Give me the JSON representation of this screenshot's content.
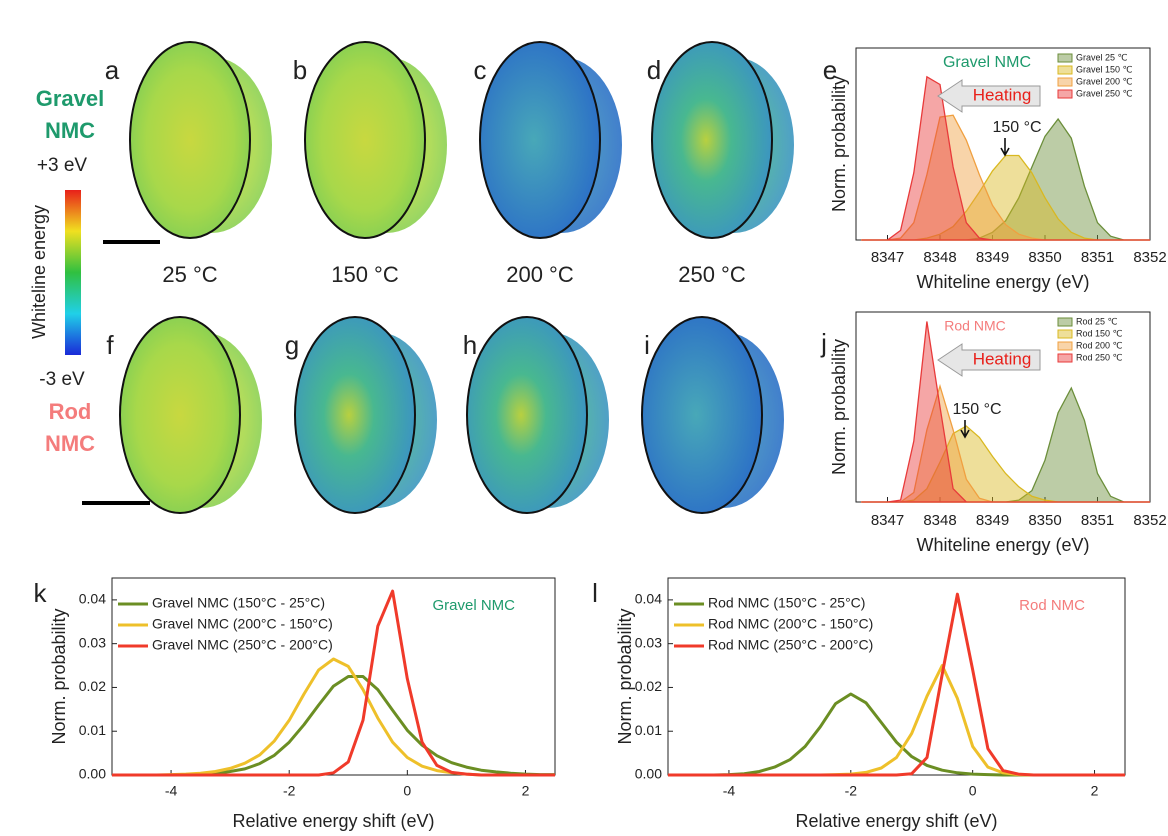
{
  "side_labels": {
    "gravel": [
      "Gravel",
      "NMC"
    ],
    "rod": [
      "Rod",
      "NMC"
    ]
  },
  "colorbar": {
    "max_label": "+3 eV",
    "min_label": "-3 eV",
    "title": "Whiteline energy"
  },
  "image_panels": {
    "labels": [
      "a",
      "b",
      "c",
      "d",
      "f",
      "g",
      "h",
      "i"
    ],
    "temperatures": [
      "25 °C",
      "150 °C",
      "200 °C",
      "250 °C"
    ]
  },
  "chart_data": [
    {
      "type": "area",
      "panel_label": "e",
      "annotation": "Gravel NMC",
      "arrow_label": "Heating",
      "peak_label": "150 °C",
      "x_label": "Whiteline energy (eV)",
      "y_label": "Norm. probability",
      "xlim": [
        8346.4,
        8352
      ],
      "xticks": [
        8347,
        8348,
        8349,
        8350,
        8351,
        8352
      ],
      "ylim": [
        0,
        1
      ],
      "legend": "upper right",
      "x": [
        8346.5,
        8346.75,
        8347,
        8347.25,
        8347.5,
        8347.75,
        8348,
        8348.25,
        8348.5,
        8348.75,
        8349,
        8349.25,
        8349.5,
        8349.75,
        8350,
        8350.25,
        8350.5,
        8350.75,
        8351,
        8351.25,
        8351.5,
        8351.75,
        8352
      ],
      "series": [
        {
          "name": "Gravel 25 ℃",
          "color": "#6b8e3a",
          "values": [
            0,
            0,
            0,
            0,
            0,
            0,
            0,
            0,
            0,
            0.01,
            0.04,
            0.1,
            0.22,
            0.38,
            0.54,
            0.63,
            0.53,
            0.28,
            0.09,
            0.02,
            0,
            0,
            0
          ]
        },
        {
          "name": "Gravel 150 ℃",
          "color": "#d9b820",
          "values": [
            0,
            0,
            0,
            0,
            0,
            0.01,
            0.03,
            0.07,
            0.15,
            0.25,
            0.36,
            0.44,
            0.44,
            0.35,
            0.22,
            0.11,
            0.04,
            0.01,
            0,
            0,
            0,
            0,
            0
          ]
        },
        {
          "name": "Gravel 200 ℃",
          "color": "#f0a040",
          "values": [
            0,
            0,
            0,
            0.01,
            0.09,
            0.34,
            0.64,
            0.65,
            0.52,
            0.34,
            0.18,
            0.08,
            0.03,
            0.01,
            0,
            0,
            0,
            0,
            0,
            0,
            0,
            0,
            0
          ]
        },
        {
          "name": "Gravel 250 ℃",
          "color": "#e83a3a",
          "values": [
            0,
            0,
            0,
            0.05,
            0.35,
            0.85,
            0.81,
            0.38,
            0.09,
            0.01,
            0,
            0,
            0,
            0,
            0,
            0,
            0,
            0,
            0,
            0,
            0,
            0,
            0
          ]
        }
      ]
    },
    {
      "type": "area",
      "panel_label": "j",
      "annotation": "Rod NMC",
      "arrow_label": "Heating",
      "peak_label": "150 °C",
      "x_label": "Whiteline energy (eV)",
      "y_label": "Norm. probability",
      "xlim": [
        8346.4,
        8352
      ],
      "xticks": [
        8347,
        8348,
        8349,
        8350,
        8351,
        8352
      ],
      "ylim": [
        0,
        1
      ],
      "legend": "upper right",
      "x": [
        8346.5,
        8346.75,
        8347,
        8347.25,
        8347.5,
        8347.75,
        8348,
        8348.25,
        8348.5,
        8348.75,
        8349,
        8349.25,
        8349.5,
        8349.75,
        8350,
        8350.25,
        8350.5,
        8350.75,
        8351,
        8351.25,
        8351.5,
        8351.75,
        8352
      ],
      "series": [
        {
          "name": "Rod 25 ℃",
          "color": "#6b8e3a",
          "values": [
            0,
            0,
            0,
            0,
            0,
            0,
            0,
            0,
            0,
            0,
            0,
            0,
            0.01,
            0.06,
            0.22,
            0.47,
            0.6,
            0.43,
            0.15,
            0.03,
            0,
            0,
            0
          ]
        },
        {
          "name": "Rod 150 ℃",
          "color": "#d9b820",
          "values": [
            0,
            0,
            0,
            0,
            0.01,
            0.07,
            0.21,
            0.36,
            0.4,
            0.34,
            0.24,
            0.15,
            0.08,
            0.03,
            0.01,
            0,
            0,
            0,
            0,
            0,
            0,
            0,
            0
          ]
        },
        {
          "name": "Rod 200 ℃",
          "color": "#f0a040",
          "values": [
            0,
            0,
            0,
            0,
            0.05,
            0.38,
            0.61,
            0.38,
            0.12,
            0.02,
            0,
            0,
            0,
            0,
            0,
            0,
            0,
            0,
            0,
            0,
            0,
            0,
            0
          ]
        },
        {
          "name": "Rod 250 ℃",
          "color": "#e83a3a",
          "values": [
            0,
            0,
            0,
            0.01,
            0.32,
            0.95,
            0.5,
            0.07,
            0,
            0,
            0,
            0,
            0,
            0,
            0,
            0,
            0,
            0,
            0,
            0,
            0,
            0,
            0
          ]
        }
      ]
    },
    {
      "type": "line",
      "panel_label": "k",
      "annotation": "Gravel NMC",
      "x_label": "Relative energy shift (eV)",
      "y_label": "Norm. probability",
      "xlim": [
        -5,
        2.5
      ],
      "xticks": [
        -4,
        -2,
        0,
        2
      ],
      "ylim": [
        0,
        0.045
      ],
      "yticks": [
        {
          "value": 0,
          "label": "0.00"
        },
        0.01,
        0.02,
        0.03,
        0.04
      ],
      "legend": "upper left",
      "x": [
        -5,
        -4.75,
        -4.5,
        -4.25,
        -4,
        -3.75,
        -3.5,
        -3.25,
        -3,
        -2.75,
        -2.5,
        -2.25,
        -2,
        -1.75,
        -1.5,
        -1.25,
        -1,
        -0.75,
        -0.5,
        -0.25,
        0,
        0.25,
        0.5,
        0.75,
        1,
        1.25,
        1.5,
        1.75,
        2,
        2.25,
        2.5
      ],
      "series": [
        {
          "name": "Gravel NMC (150°C - 25°C)",
          "color": "#6b8e23",
          "values": [
            0,
            0,
            0,
            0,
            0,
            0.0001,
            0.0002,
            0.0004,
            0.0008,
            0.0014,
            0.0026,
            0.0045,
            0.0075,
            0.0115,
            0.016,
            0.0203,
            0.0225,
            0.0225,
            0.0195,
            0.0148,
            0.0102,
            0.0068,
            0.0044,
            0.0028,
            0.0018,
            0.0011,
            0.0007,
            0.0004,
            0.0002,
            0.0001,
            0.0001
          ]
        },
        {
          "name": "Gravel NMC (200°C - 150°C)",
          "color": "#eec02a",
          "values": [
            0,
            0,
            0,
            0,
            0.0001,
            0.0002,
            0.0004,
            0.0008,
            0.0015,
            0.0027,
            0.0046,
            0.0078,
            0.0125,
            0.0185,
            0.024,
            0.0265,
            0.0248,
            0.0195,
            0.013,
            0.0075,
            0.004,
            0.002,
            0.001,
            0.0005,
            0.0002,
            0,
            0,
            0,
            0,
            0,
            0
          ]
        },
        {
          "name": "Gravel NMC (250°C - 200°C)",
          "color": "#f03a2a",
          "values": [
            0,
            0,
            0,
            0,
            0,
            0,
            0,
            0,
            0,
            0,
            0,
            0,
            0,
            0,
            0,
            0.0005,
            0.003,
            0.0125,
            0.034,
            0.042,
            0.022,
            0.0075,
            0.0022,
            0.0006,
            0.0002,
            0,
            0,
            0,
            0,
            0,
            0
          ]
        }
      ]
    },
    {
      "type": "line",
      "panel_label": "l",
      "annotation": "Rod NMC",
      "x_label": "Relative energy shift (eV)",
      "y_label": "Norm. probability",
      "xlim": [
        -5,
        2.5
      ],
      "xticks": [
        -4,
        -2,
        0,
        2
      ],
      "ylim": [
        0,
        0.045
      ],
      "yticks": [
        {
          "value": 0,
          "label": "0.00"
        },
        0.01,
        0.02,
        0.03,
        0.04
      ],
      "legend": "upper left",
      "x": [
        -5,
        -4.75,
        -4.5,
        -4.25,
        -4,
        -3.75,
        -3.5,
        -3.25,
        -3,
        -2.75,
        -2.5,
        -2.25,
        -2,
        -1.75,
        -1.5,
        -1.25,
        -1,
        -0.75,
        -0.5,
        -0.25,
        0,
        0.25,
        0.5,
        0.75,
        1,
        1.25,
        1.5,
        1.75,
        2,
        2.25,
        2.5
      ],
      "series": [
        {
          "name": "Rod NMC (150°C - 25°C)",
          "color": "#6b8e23",
          "values": [
            0,
            0,
            0,
            0,
            0.0001,
            0.0003,
            0.0008,
            0.0018,
            0.0035,
            0.0065,
            0.011,
            0.0163,
            0.0185,
            0.0165,
            0.012,
            0.0075,
            0.0042,
            0.0022,
            0.0011,
            0.0005,
            0.0002,
            0.0001,
            0,
            0,
            0,
            0,
            0,
            0,
            0,
            0,
            0
          ]
        },
        {
          "name": "Rod NMC (200°C - 150°C)",
          "color": "#eec02a",
          "values": [
            0,
            0,
            0,
            0,
            0,
            0,
            0,
            0,
            0,
            0,
            0,
            0.0001,
            0.0002,
            0.0006,
            0.0016,
            0.004,
            0.0095,
            0.018,
            0.025,
            0.0175,
            0.0065,
            0.0018,
            0.0005,
            0.0001,
            0,
            0,
            0,
            0,
            0,
            0,
            0
          ]
        },
        {
          "name": "Rod NMC (250°C - 200°C)",
          "color": "#f03a2a",
          "values": [
            0,
            0,
            0,
            0,
            0,
            0,
            0,
            0,
            0,
            0,
            0,
            0,
            0,
            0,
            0,
            0,
            0.0003,
            0.004,
            0.023,
            0.0413,
            0.024,
            0.006,
            0.001,
            0.0002,
            0,
            0,
            0,
            0,
            0,
            0,
            0
          ]
        }
      ]
    }
  ]
}
